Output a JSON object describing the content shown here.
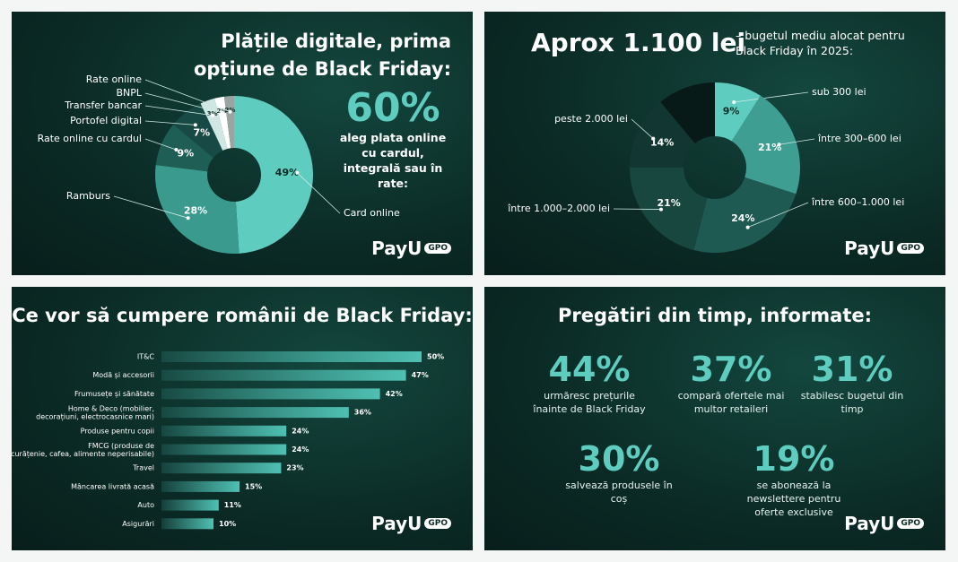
{
  "chart_data": [
    {
      "type": "pie",
      "title": "Plățile digitale, prima opțiune de Black Friday:",
      "highlight": "60%",
      "highlight_text": "aleg plata online cu cardul, integrală sau în rate:",
      "categories": [
        "Card online",
        "Ramburs",
        "Rate online cu cardul",
        "Portofel digital",
        "Transfer bancar",
        "BNPL",
        "Rate online"
      ],
      "values": [
        49,
        28,
        9,
        7,
        3,
        2,
        2
      ],
      "value_labels": [
        "49%",
        "28%",
        "9%",
        "7%",
        "3%",
        "2%",
        "2%"
      ],
      "colors": [
        "#5ecdbf",
        "#3a9a8e",
        "#1e5e55",
        "#174a44",
        "#cfe8e4",
        "#ffffff",
        "#9aa5a3"
      ]
    },
    {
      "type": "pie",
      "title": "Aprox 1.100 lei",
      "subtitle": "– bugetul mediu alocat pentru Black Friday în 2025:",
      "categories": [
        "sub 300 lei",
        "între 300–600 lei",
        "între 600–1.000 lei",
        "între 1.000–2.000 lei",
        "peste 2.000 lei",
        null
      ],
      "values": [
        9,
        21,
        24,
        21,
        14,
        11
      ],
      "value_labels": [
        "9%",
        "21%",
        "24%",
        "21%",
        "14%",
        null
      ],
      "colors": [
        "#5ecdbf",
        "#3d9e91",
        "#1e5a52",
        "#18473f",
        "#123631",
        "#081a17"
      ]
    },
    {
      "type": "bar",
      "title": "Ce vor să cumpere românii de Black Friday:",
      "categories": [
        "IT&C",
        "Modă și accesorii",
        "Frumusețe și sănătate",
        "Home & Deco (mobilier, decorațiuni, electrocasnice mari)",
        "Produse pentru copii",
        "FMCG (produse de curățenie, cafea, alimente neperisabile)",
        "Travel",
        "Mâncarea livrată acasă",
        "Auto",
        "Asigurări"
      ],
      "values": [
        50,
        47,
        42,
        36,
        24,
        24,
        23,
        15,
        11,
        10
      ],
      "value_labels": [
        "50%",
        "47%",
        "42%",
        "36%",
        "24%",
        "24%",
        "23%",
        "15%",
        "11%",
        "10%"
      ],
      "xlim": [
        0,
        50
      ],
      "color": "#4fc0b3"
    }
  ],
  "stats_panel": {
    "title": "Pregătiri din timp, informate:",
    "items": [
      {
        "value": "44%",
        "text": "urmăresc prețurile înainte de Black Friday"
      },
      {
        "value": "37%",
        "text": "compară ofertele mai multor retaileri"
      },
      {
        "value": "31%",
        "text": "stabilesc bugetul din timp"
      },
      {
        "value": "30%",
        "text": "salvează produsele în coș"
      },
      {
        "value": "19%",
        "text": "se abonează la newslettere pentru oferte exclusive"
      }
    ]
  },
  "logo": {
    "brand": "PayU",
    "tag": "GPO"
  }
}
